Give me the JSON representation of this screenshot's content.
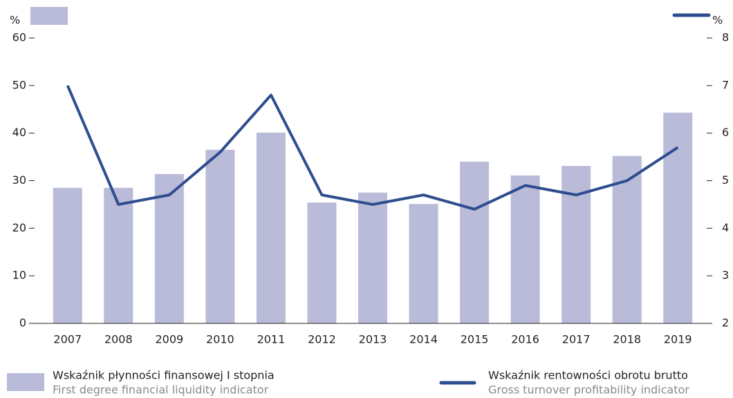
{
  "chart_data": {
    "type": "bar-line",
    "categories": [
      "2007",
      "2008",
      "2009",
      "2010",
      "2011",
      "2012",
      "2013",
      "2014",
      "2015",
      "2016",
      "2017",
      "2018",
      "2019"
    ],
    "ylabel": "%",
    "y2label": "%",
    "ylim": [
      0,
      60
    ],
    "yticks": [
      0,
      10,
      20,
      30,
      40,
      50,
      60
    ],
    "y2lim": [
      2,
      8
    ],
    "y2ticks": [
      2,
      3,
      4,
      5,
      6,
      7,
      8
    ],
    "series": [
      {
        "name": "Wskaźnik płynności finansowej I stopnia",
        "subtitle": "First degree financial liquidity indicator",
        "type": "bar",
        "color": "#b9bbd9",
        "values": [
          28.5,
          28.5,
          31.4,
          36.5,
          40.1,
          25.4,
          27.5,
          25.1,
          34.0,
          31.1,
          33.1,
          35.2,
          44.3
        ]
      },
      {
        "name": "Wskaźnik rentowności obrotu brutto",
        "subtitle": "Gross turnover profitability indicator",
        "type": "line",
        "axis": "y2",
        "color": "#2e4d8e",
        "values": [
          7.0,
          4.5,
          4.7,
          5.6,
          6.8,
          4.7,
          4.5,
          4.7,
          4.4,
          4.9,
          4.7,
          5.0,
          5.7
        ]
      }
    ]
  }
}
